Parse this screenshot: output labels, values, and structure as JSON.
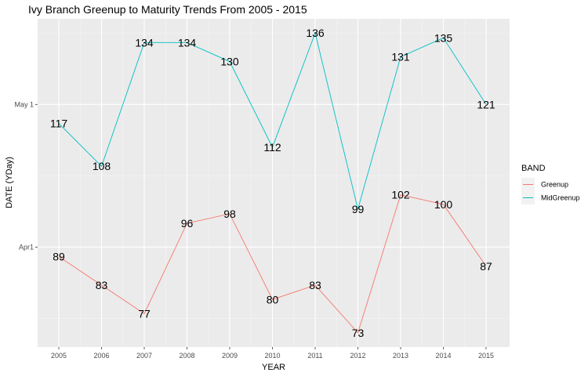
{
  "chart_data": {
    "type": "line",
    "title": "Ivy Branch Greenup to Maturity Trends From 2005 - 2015",
    "xlabel": "YEAR",
    "ylabel": "DATE (YDay)",
    "x": [
      "2005",
      "2006",
      "2007",
      "2008",
      "2009",
      "2010",
      "2011",
      "2012",
      "2013",
      "2014",
      "2015"
    ],
    "y_ticks": [
      {
        "value": 91,
        "label": "Apr1"
      },
      {
        "value": 121,
        "label": "May 1"
      }
    ],
    "ylim": [
      70,
      139
    ],
    "grid": true,
    "legend": {
      "title": "BAND",
      "position": "right"
    },
    "series": [
      {
        "name": "Greenup",
        "color": "#F8766D",
        "values": [
          89,
          83,
          77,
          96,
          98,
          80,
          83,
          73,
          102,
          100,
          87
        ]
      },
      {
        "name": "MidGreenup",
        "color": "#00BFC4",
        "values": [
          117,
          108,
          134,
          134,
          130,
          112,
          136,
          99,
          131,
          135,
          121
        ]
      }
    ]
  }
}
